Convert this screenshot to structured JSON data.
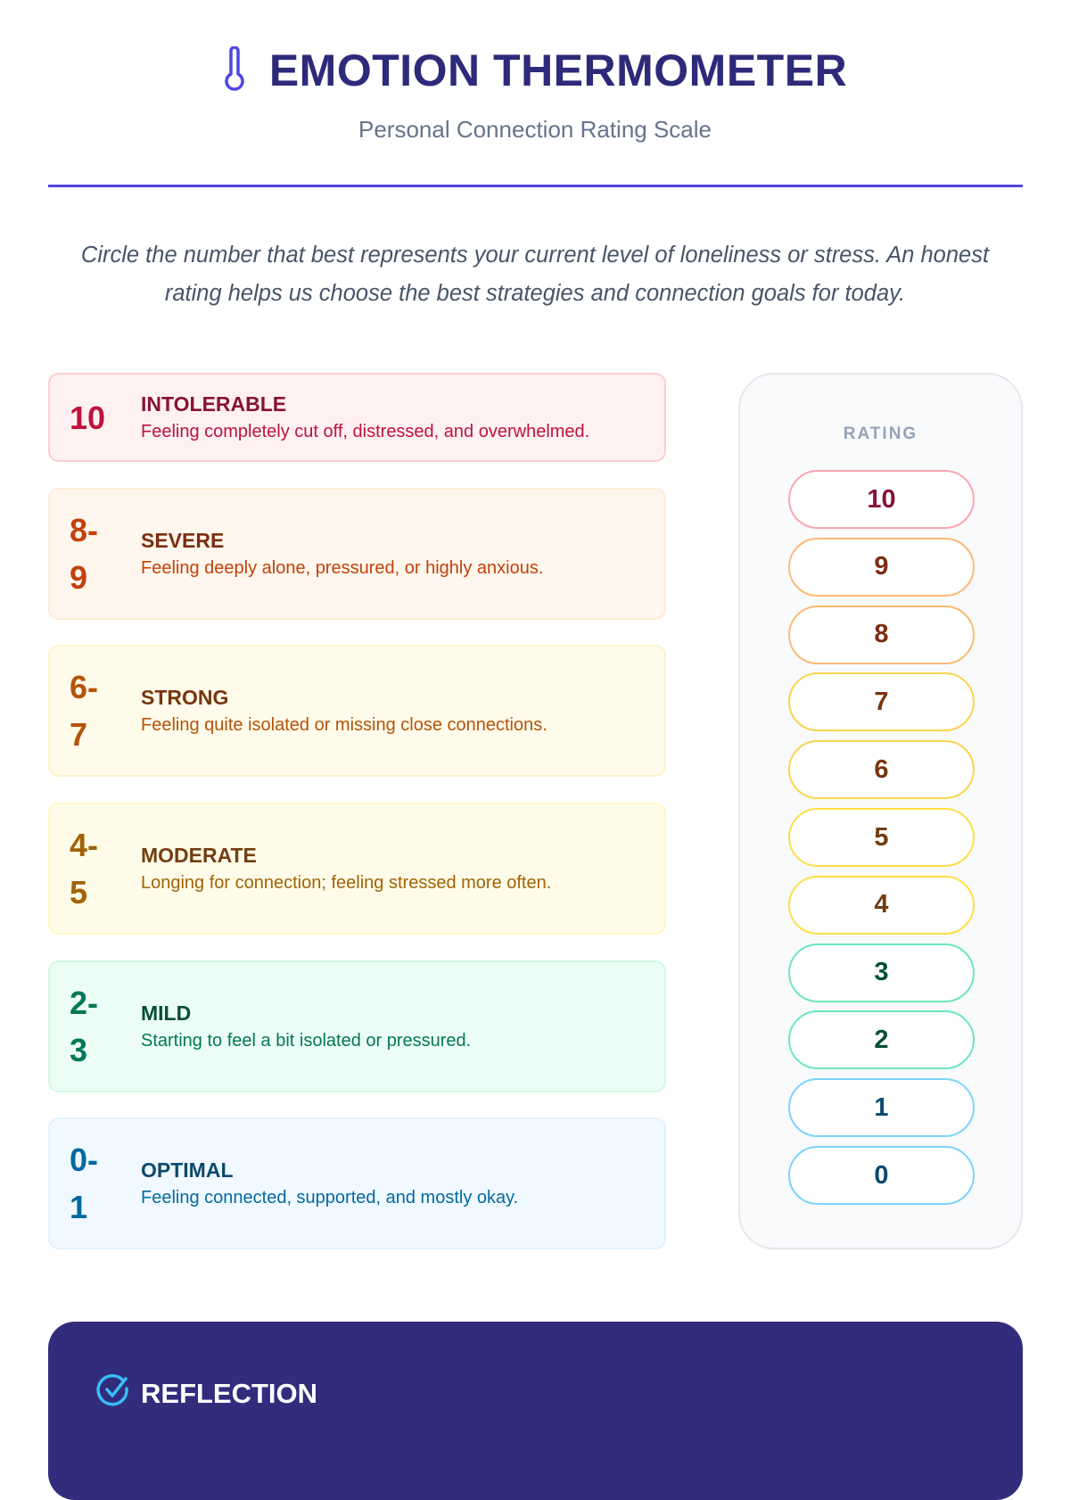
{
  "header": {
    "title": "EMOTION THERMOMETER",
    "subtitle": "Personal Connection Rating Scale",
    "icon": "thermometer-icon",
    "accent": "#4f46e5"
  },
  "intro": "Circle the number that best represents your current level of loneliness or stress. An honest rating helps us choose the best strategies and connection goals for today.",
  "levels": [
    {
      "range": "10",
      "title": "INTOLERABLE",
      "desc": "Feeling completely cut off, distressed, and overwhelmed.",
      "bg": "#fff1f2",
      "border": "#fecdd3",
      "num": "#be123c",
      "ttl": "#881337",
      "text": "#be123c"
    },
    {
      "range": "8-9",
      "title": "SEVERE",
      "desc": "Feeling deeply alone, pressured, or highly anxious.",
      "bg": "#fff7ed",
      "border": "#ffedd5",
      "num": "#c2410c",
      "ttl": "#7c2d12",
      "text": "#c2410c"
    },
    {
      "range": "6-7",
      "title": "STRONG",
      "desc": "Feeling quite isolated or missing close connections.",
      "bg": "#fffbeb",
      "border": "#fef3c7",
      "num": "#b45309",
      "ttl": "#78350f",
      "text": "#b45309"
    },
    {
      "range": "4-5",
      "title": "MODERATE",
      "desc": "Longing for connection; feeling stressed more often.",
      "bg": "#fefce8",
      "border": "#fef9c3",
      "num": "#a16207",
      "ttl": "#713f12",
      "text": "#a16207"
    },
    {
      "range": "2-3",
      "title": "MILD",
      "desc": "Starting to feel a bit isolated or pressured.",
      "bg": "#ecfdf5",
      "border": "#d1fae5",
      "num": "#047857",
      "ttl": "#064e3b",
      "text": "#047857"
    },
    {
      "range": "0-1",
      "title": "OPTIMAL",
      "desc": "Feeling connected, supported, and mostly okay.",
      "bg": "#f0f9ff",
      "border": "#e0f2fe",
      "num": "#0369a1",
      "ttl": "#0c4a6e",
      "text": "#0369a1"
    }
  ],
  "rating": {
    "label": "RATING",
    "values": [
      {
        "v": "10",
        "border": "#fda4af",
        "color": "#881337"
      },
      {
        "v": "9",
        "border": "#fdba74",
        "color": "#7c2d12"
      },
      {
        "v": "8",
        "border": "#fdba74",
        "color": "#7c2d12"
      },
      {
        "v": "7",
        "border": "#fcd34d",
        "color": "#78350f"
      },
      {
        "v": "6",
        "border": "#fcd34d",
        "color": "#78350f"
      },
      {
        "v": "5",
        "border": "#fde047",
        "color": "#713f12"
      },
      {
        "v": "4",
        "border": "#fde047",
        "color": "#713f12"
      },
      {
        "v": "3",
        "border": "#6ee7b7",
        "color": "#064e3b"
      },
      {
        "v": "2",
        "border": "#6ee7b7",
        "color": "#064e3b"
      },
      {
        "v": "1",
        "border": "#7dd3fc",
        "color": "#0c4a6e"
      },
      {
        "v": "0",
        "border": "#7dd3fc",
        "color": "#0c4a6e"
      }
    ]
  },
  "reflection": {
    "title": "REFLECTION",
    "icon": "check-circle-icon",
    "bg": "#312c7c"
  }
}
